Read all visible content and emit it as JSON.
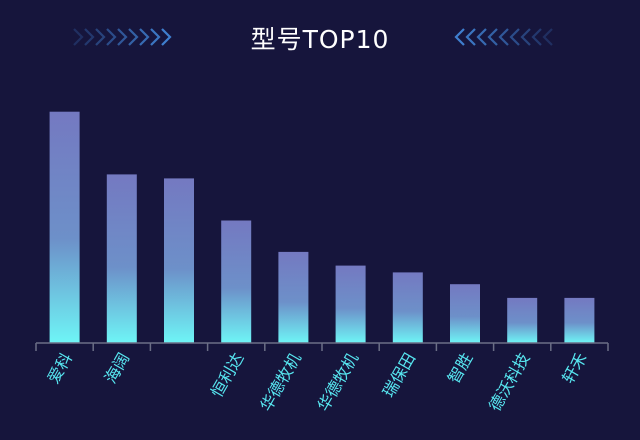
{
  "header": {
    "title": "型号TOP10"
  },
  "colors": {
    "background": "#16153c",
    "bar_top": "#7479c1",
    "bar_bottom": "#6ef5f6",
    "axis": "#6b6e86",
    "label": "#57e6f0",
    "chevron_left": "#3f7fcf",
    "chevron_right": "#3f7fcf"
  },
  "chart_data": {
    "type": "bar",
    "title": "型号TOP10",
    "categories": [
      "爱科",
      "海阔",
      "",
      "恒利达",
      "华德牧机",
      "华德牧机",
      "瑞保田",
      "智胜",
      "德沃科技",
      "轩禾"
    ],
    "values": [
      236,
      172,
      168,
      125,
      93,
      79,
      72,
      60,
      46,
      46
    ],
    "ylim": [
      0,
      250
    ],
    "xlabel": "",
    "ylabel": "",
    "grid": false,
    "legend": "none"
  }
}
